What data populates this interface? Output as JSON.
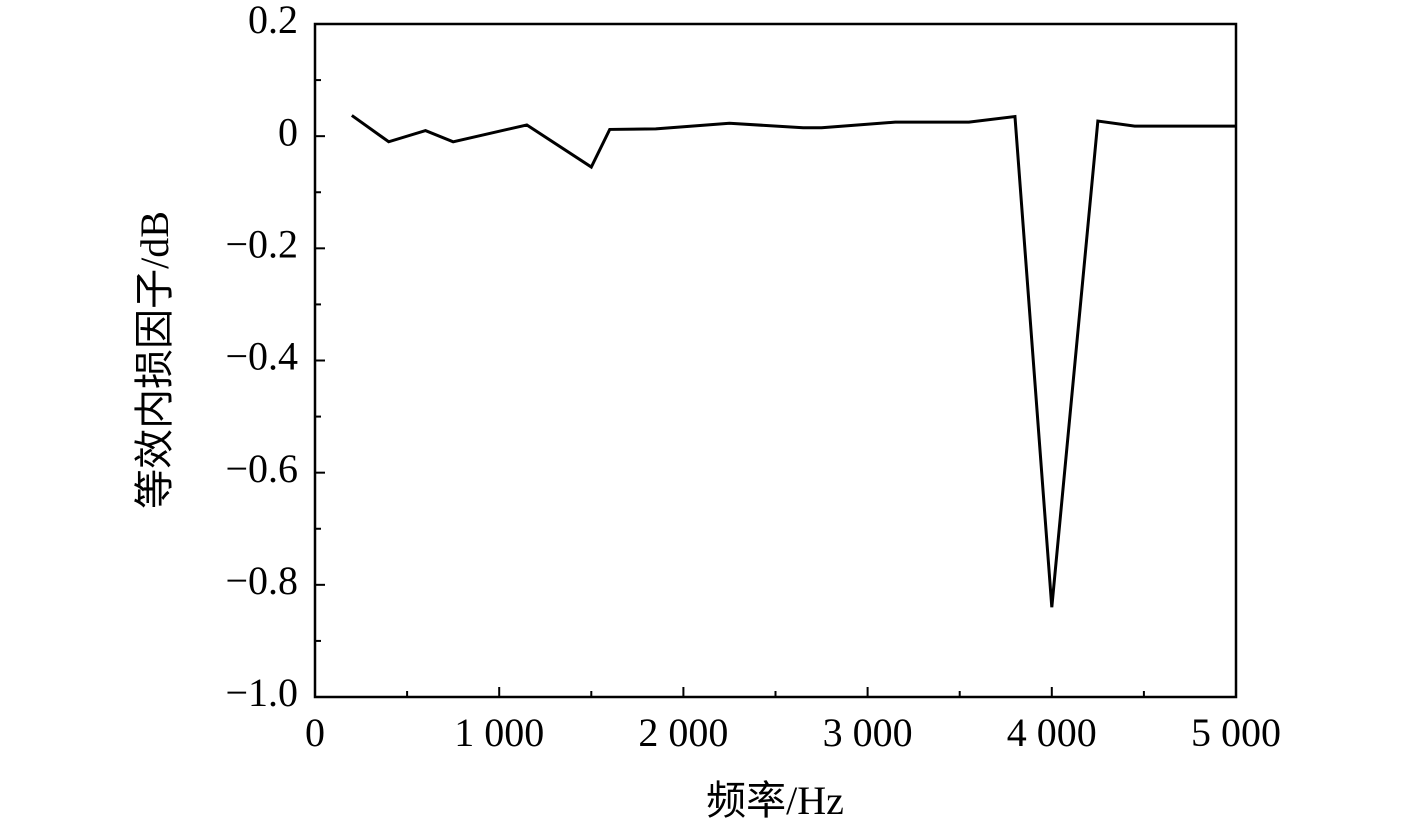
{
  "chart_data": {
    "type": "line",
    "xlabel": "频率/Hz",
    "ylabel": "等效内损因子/dB",
    "x": [
      200,
      400,
      600,
      750,
      1150,
      1500,
      1600,
      1850,
      2250,
      2650,
      2750,
      3150,
      3550,
      3800,
      4000,
      4250,
      4450,
      5000
    ],
    "series": [
      {
        "color": "#000000",
        "values": [
          0.037,
          -0.01,
          0.01,
          -0.01,
          0.02,
          -0.055,
          0.012,
          0.013,
          0.023,
          0.015,
          0.015,
          0.025,
          0.025,
          0.035,
          -0.84,
          0.027,
          0.018,
          0.018
        ]
      }
    ],
    "xlim": [
      0,
      5000
    ],
    "xticks": [
      0,
      {
        "value": 1000,
        "label": "1 000"
      },
      {
        "value": 2000,
        "label": "2 000"
      },
      {
        "value": 3000,
        "label": "3 000"
      },
      {
        "value": 4000,
        "label": "4 000"
      },
      {
        "value": 5000,
        "label": "5 000"
      }
    ],
    "xticks_minor": [
      500,
      1500,
      2500,
      3500,
      4500
    ],
    "ylim": [
      -1.0,
      0.2
    ],
    "yticks": [
      0.2,
      0,
      {
        "value": -0.2,
        "label": "−0.2"
      },
      {
        "value": -0.4,
        "label": "−0.4"
      },
      {
        "value": -0.6,
        "label": "−0.6"
      },
      {
        "value": -0.8,
        "label": "−0.8"
      },
      {
        "value": -1.0,
        "label": "−1.0"
      }
    ],
    "yticks_minor": [
      0.1,
      -0.1,
      -0.3,
      -0.5,
      -0.7,
      -0.9
    ],
    "grid": false
  }
}
